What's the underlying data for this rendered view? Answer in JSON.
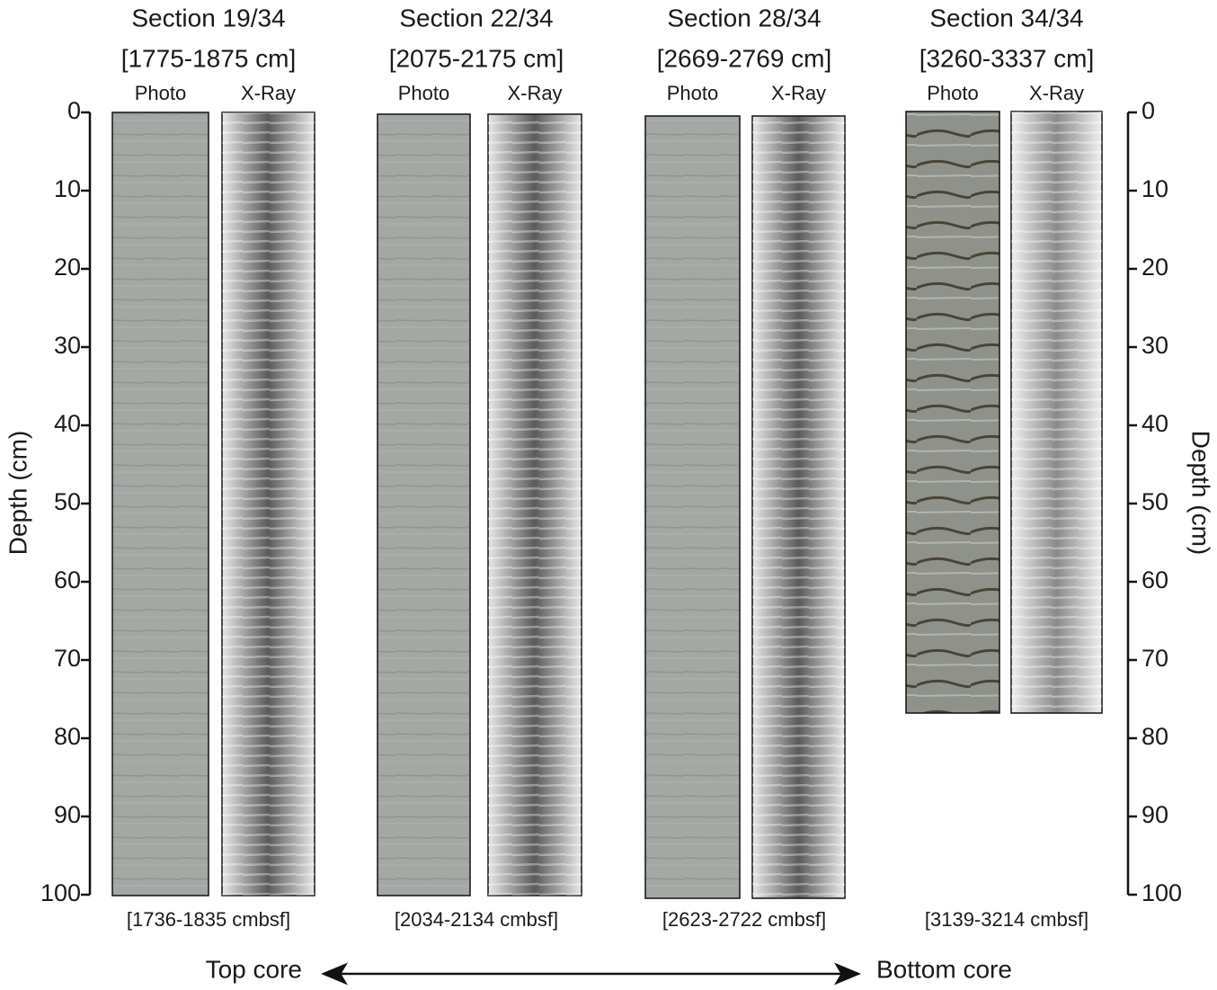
{
  "axis": {
    "label": "Depth (cm)",
    "lim": [
      0,
      100
    ],
    "ticks": [
      0,
      10,
      20,
      30,
      40,
      50,
      60,
      70,
      80,
      90,
      100
    ]
  },
  "sections": [
    {
      "title": "Section 19/34",
      "range": "[1775-1875 cm]",
      "photo_label": "Photo",
      "xray_label": "X-Ray",
      "depth_label": "[1736-1835 cmbsf]"
    },
    {
      "title": "Section 22/34",
      "range": "[2075-2175 cm]",
      "photo_label": "Photo",
      "xray_label": "X-Ray",
      "depth_label": "[2034-2134 cmbsf]"
    },
    {
      "title": "Section 28/34",
      "range": "[2669-2769 cm]",
      "photo_label": "Photo",
      "xray_label": "X-Ray",
      "depth_label": "[2623-2722 cmbsf]"
    },
    {
      "title": "Section 34/34",
      "range": "[3260-3337 cm]",
      "photo_label": "Photo",
      "xray_label": "X-Ray",
      "depth_label": "[3139-3214 cmbsf]"
    }
  ],
  "footer": {
    "left": "Top core",
    "right": "Bottom core"
  }
}
